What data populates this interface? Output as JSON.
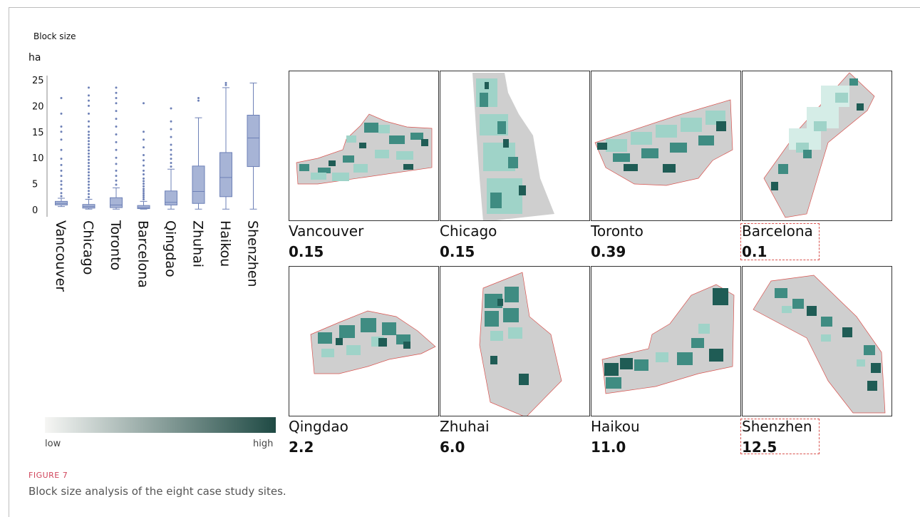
{
  "figure": {
    "label": "FIGURE 7",
    "caption": "Block size analysis of the eight case study sites."
  },
  "legend": {
    "low": "low",
    "high": "high",
    "color_low": "#f6f6f4",
    "color_high": "#1f4a44"
  },
  "colors": {
    "box_fill": "#a7b4d6",
    "box_stroke": "#6e81b7",
    "map_dark": "#1f5c55",
    "map_mid": "#3f8c82",
    "map_light": "#9fd3c8",
    "map_pale": "#d5ede7",
    "map_gray": "#cfcfcf",
    "boundary": "#d9534f",
    "highlight_border": "#d9534f"
  },
  "chart_data": {
    "type": "box",
    "title": "Block size",
    "ylabel": "ha",
    "ylim": [
      0,
      25
    ],
    "yticks": [
      0,
      5,
      10,
      15,
      20,
      25
    ],
    "categories": [
      "Vancouver",
      "Chicago",
      "Toronto",
      "Barcelona",
      "Qingdao",
      "Zhuhai",
      "Haikou",
      "Shenzhen"
    ],
    "boxes": [
      {
        "name": "Vancouver",
        "min": 0.6,
        "q1": 0.9,
        "median": 1.2,
        "q3": 1.6,
        "max": 2.2,
        "outliers": [
          2.6,
          3.2,
          4.0,
          4.8,
          5.5,
          6.5,
          7.5,
          8.6,
          9.8,
          11.5,
          13.5,
          15.0,
          16.0,
          18.5,
          21.5
        ]
      },
      {
        "name": "Chicago",
        "min": 0.1,
        "q1": 0.3,
        "median": 0.6,
        "q3": 1.0,
        "max": 2.0,
        "outliers": [
          2.4,
          3.0,
          3.6,
          4.2,
          4.8,
          5.4,
          6.0,
          6.6,
          7.2,
          7.8,
          8.4,
          9.0,
          9.6,
          10.2,
          10.8,
          11.4,
          12.0,
          12.6,
          13.2,
          13.8,
          14.4,
          15.0,
          16.0,
          17.0,
          18.5,
          20.0,
          21.0,
          22.0,
          23.5
        ]
      },
      {
        "name": "Toronto",
        "min": 0.1,
        "q1": 0.4,
        "median": 0.9,
        "q3": 2.3,
        "max": 4.2,
        "outliers": [
          4.8,
          5.6,
          6.5,
          7.5,
          8.8,
          10.0,
          11.5,
          13.0,
          14.5,
          16.0,
          17.5,
          19.0,
          20.5,
          21.5,
          22.5,
          23.5
        ]
      },
      {
        "name": "Barcelona",
        "min": 0.1,
        "q1": 0.2,
        "median": 0.4,
        "q3": 0.8,
        "max": 1.6,
        "outliers": [
          2.0,
          2.4,
          2.8,
          3.2,
          3.6,
          4.0,
          4.5,
          5.0,
          5.5,
          6.0,
          6.8,
          7.5,
          8.5,
          9.5,
          10.5,
          12.0,
          13.5,
          15.0,
          20.5
        ]
      },
      {
        "name": "Qingdao",
        "min": 0.1,
        "q1": 0.9,
        "median": 1.4,
        "q3": 3.6,
        "max": 7.8,
        "outliers": [
          8.3,
          9.0,
          9.8,
          10.6,
          11.5,
          12.5,
          14.0,
          15.5,
          17.0,
          19.5
        ]
      },
      {
        "name": "Zhuhai",
        "min": 0.1,
        "q1": 1.2,
        "median": 3.5,
        "q3": 8.4,
        "max": 17.7,
        "outliers": [
          21.0,
          21.5
        ]
      },
      {
        "name": "Haikou",
        "min": 0.1,
        "q1": 2.5,
        "median": 6.2,
        "q3": 11.0,
        "max": 23.5,
        "outliers": [
          24.0,
          24.4
        ]
      },
      {
        "name": "Shenzhen",
        "min": 0.1,
        "q1": 8.3,
        "median": 13.8,
        "q3": 18.2,
        "max": 24.4,
        "outliers": []
      }
    ]
  },
  "panels": [
    {
      "city": "Vancouver",
      "value": "0.15"
    },
    {
      "city": "Chicago",
      "value": "0.15"
    },
    {
      "city": "Toronto",
      "value": "0.39"
    },
    {
      "city": "Barcelona",
      "value": "0.1"
    },
    {
      "city": "Qingdao",
      "value": "2.2"
    },
    {
      "city": "Zhuhai",
      "value": "6.0"
    },
    {
      "city": "Haikou",
      "value": "11.0"
    },
    {
      "city": "Shenzhen",
      "value": "12.5"
    }
  ]
}
